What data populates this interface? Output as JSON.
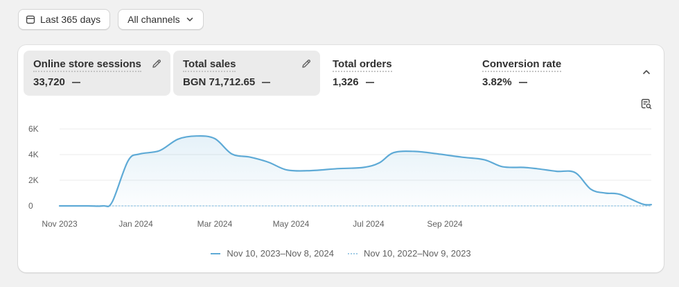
{
  "filters": {
    "date_label": "Last 365 days",
    "channel_label": "All channels"
  },
  "metrics": [
    {
      "title": "Online store sessions",
      "value": "33,720",
      "active": true,
      "editable": true
    },
    {
      "title": "Total sales",
      "value": "BGN 71,712.65",
      "active": true,
      "editable": true
    },
    {
      "title": "Total orders",
      "value": "1,326",
      "active": false,
      "editable": false
    },
    {
      "title": "Conversion rate",
      "value": "3.82%",
      "active": false,
      "editable": false
    }
  ],
  "icons": {
    "date": "calendar-icon",
    "channels": "chevron-down-icon",
    "edit": "pencil-icon",
    "collapse": "chevron-up-icon",
    "report": "report-search-icon"
  },
  "colors": {
    "current_series": "#5eaad6",
    "previous_series": "#9fcbe6",
    "active_tile": "#ebebeb"
  },
  "chart_data": {
    "type": "area",
    "x_ticks": [
      "Nov 2023",
      "Jan 2024",
      "Mar 2024",
      "May 2024",
      "Jul 2024",
      "Sep 2024"
    ],
    "y_ticks": [
      "6K",
      "4K",
      "2K",
      "0"
    ],
    "ylim": [
      0,
      6000
    ],
    "grid": true,
    "legend_position": "bottom",
    "series": [
      {
        "name": "Nov 10, 2023–Nov 8, 2024",
        "style": "solid",
        "points": [
          [
            "2023-11-10",
            0
          ],
          [
            "2023-12-01",
            0
          ],
          [
            "2023-12-13",
            0
          ],
          [
            "2023-12-20",
            300
          ],
          [
            "2024-01-01",
            3500
          ],
          [
            "2024-01-10",
            4050
          ],
          [
            "2024-01-25",
            4300
          ],
          [
            "2024-02-08",
            5200
          ],
          [
            "2024-02-22",
            5450
          ],
          [
            "2024-03-07",
            5250
          ],
          [
            "2024-03-20",
            4050
          ],
          [
            "2024-04-03",
            3800
          ],
          [
            "2024-04-17",
            3400
          ],
          [
            "2024-05-01",
            2800
          ],
          [
            "2024-05-19",
            2750
          ],
          [
            "2024-06-08",
            2900
          ],
          [
            "2024-06-28",
            3000
          ],
          [
            "2024-07-10",
            3350
          ],
          [
            "2024-07-21",
            4150
          ],
          [
            "2024-08-06",
            4250
          ],
          [
            "2024-08-24",
            4050
          ],
          [
            "2024-09-11",
            3800
          ],
          [
            "2024-09-28",
            3600
          ],
          [
            "2024-10-12",
            3050
          ],
          [
            "2024-10-28",
            3000
          ],
          [
            "2024-11-07",
            2900
          ],
          [
            "2024-11-22",
            2700
          ],
          [
            "2024-12-06",
            2600
          ],
          [
            "2024-12-18",
            1300
          ],
          [
            "2024-12-29",
            1000
          ],
          [
            "2025-01-09",
            900
          ],
          [
            "2025-01-26",
            150
          ],
          [
            "2025-02-02",
            100
          ]
        ]
      },
      {
        "name": "Nov 10, 2022–Nov 9, 2023",
        "style": "dotted",
        "points": [
          [
            "2023-11-10",
            0
          ],
          [
            "2025-02-02",
            0
          ]
        ]
      }
    ]
  }
}
